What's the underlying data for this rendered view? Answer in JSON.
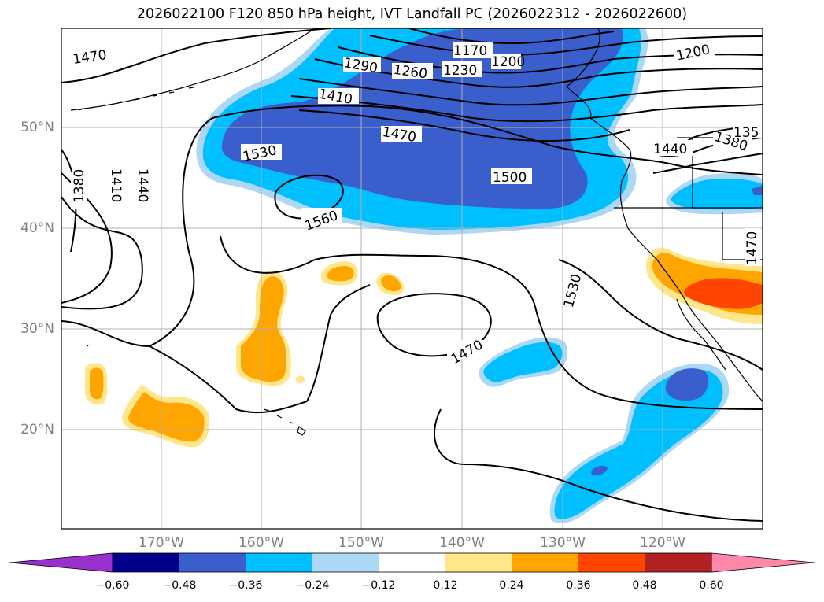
{
  "title": "2026022100 F120 850 hPa height, IVT Landfall PC (2026022312 - 2026022600)",
  "lat_labels": [
    "50°N",
    "40°N",
    "30°N",
    "20°N"
  ],
  "lon_labels": [
    "170°W",
    "160°W",
    "150°W",
    "140°W",
    "130°W",
    "120°W"
  ],
  "colorbar": {
    "ticks": [
      "−0.60",
      "−0.48",
      "−0.36",
      "−0.24",
      "−0.12",
      "0.12",
      "0.24",
      "0.36",
      "0.48",
      "0.60"
    ],
    "colors": [
      "#9932cc",
      "#00008b",
      "#3a5fcd",
      "#00bfff",
      "#add8f5",
      "#ffffff",
      "#ffe68a",
      "#ffa500",
      "#ff4500",
      "#b22222",
      "#ff88aa"
    ]
  },
  "contour_labels": [
    "1470",
    "1290",
    "1260",
    "1230",
    "1170",
    "1200",
    "1200",
    "1410",
    "1470",
    "1500",
    "1530",
    "1560",
    "1380",
    "1410",
    "1440",
    "1440",
    "1380",
    "135",
    "1470",
    "1530",
    "1470"
  ]
}
